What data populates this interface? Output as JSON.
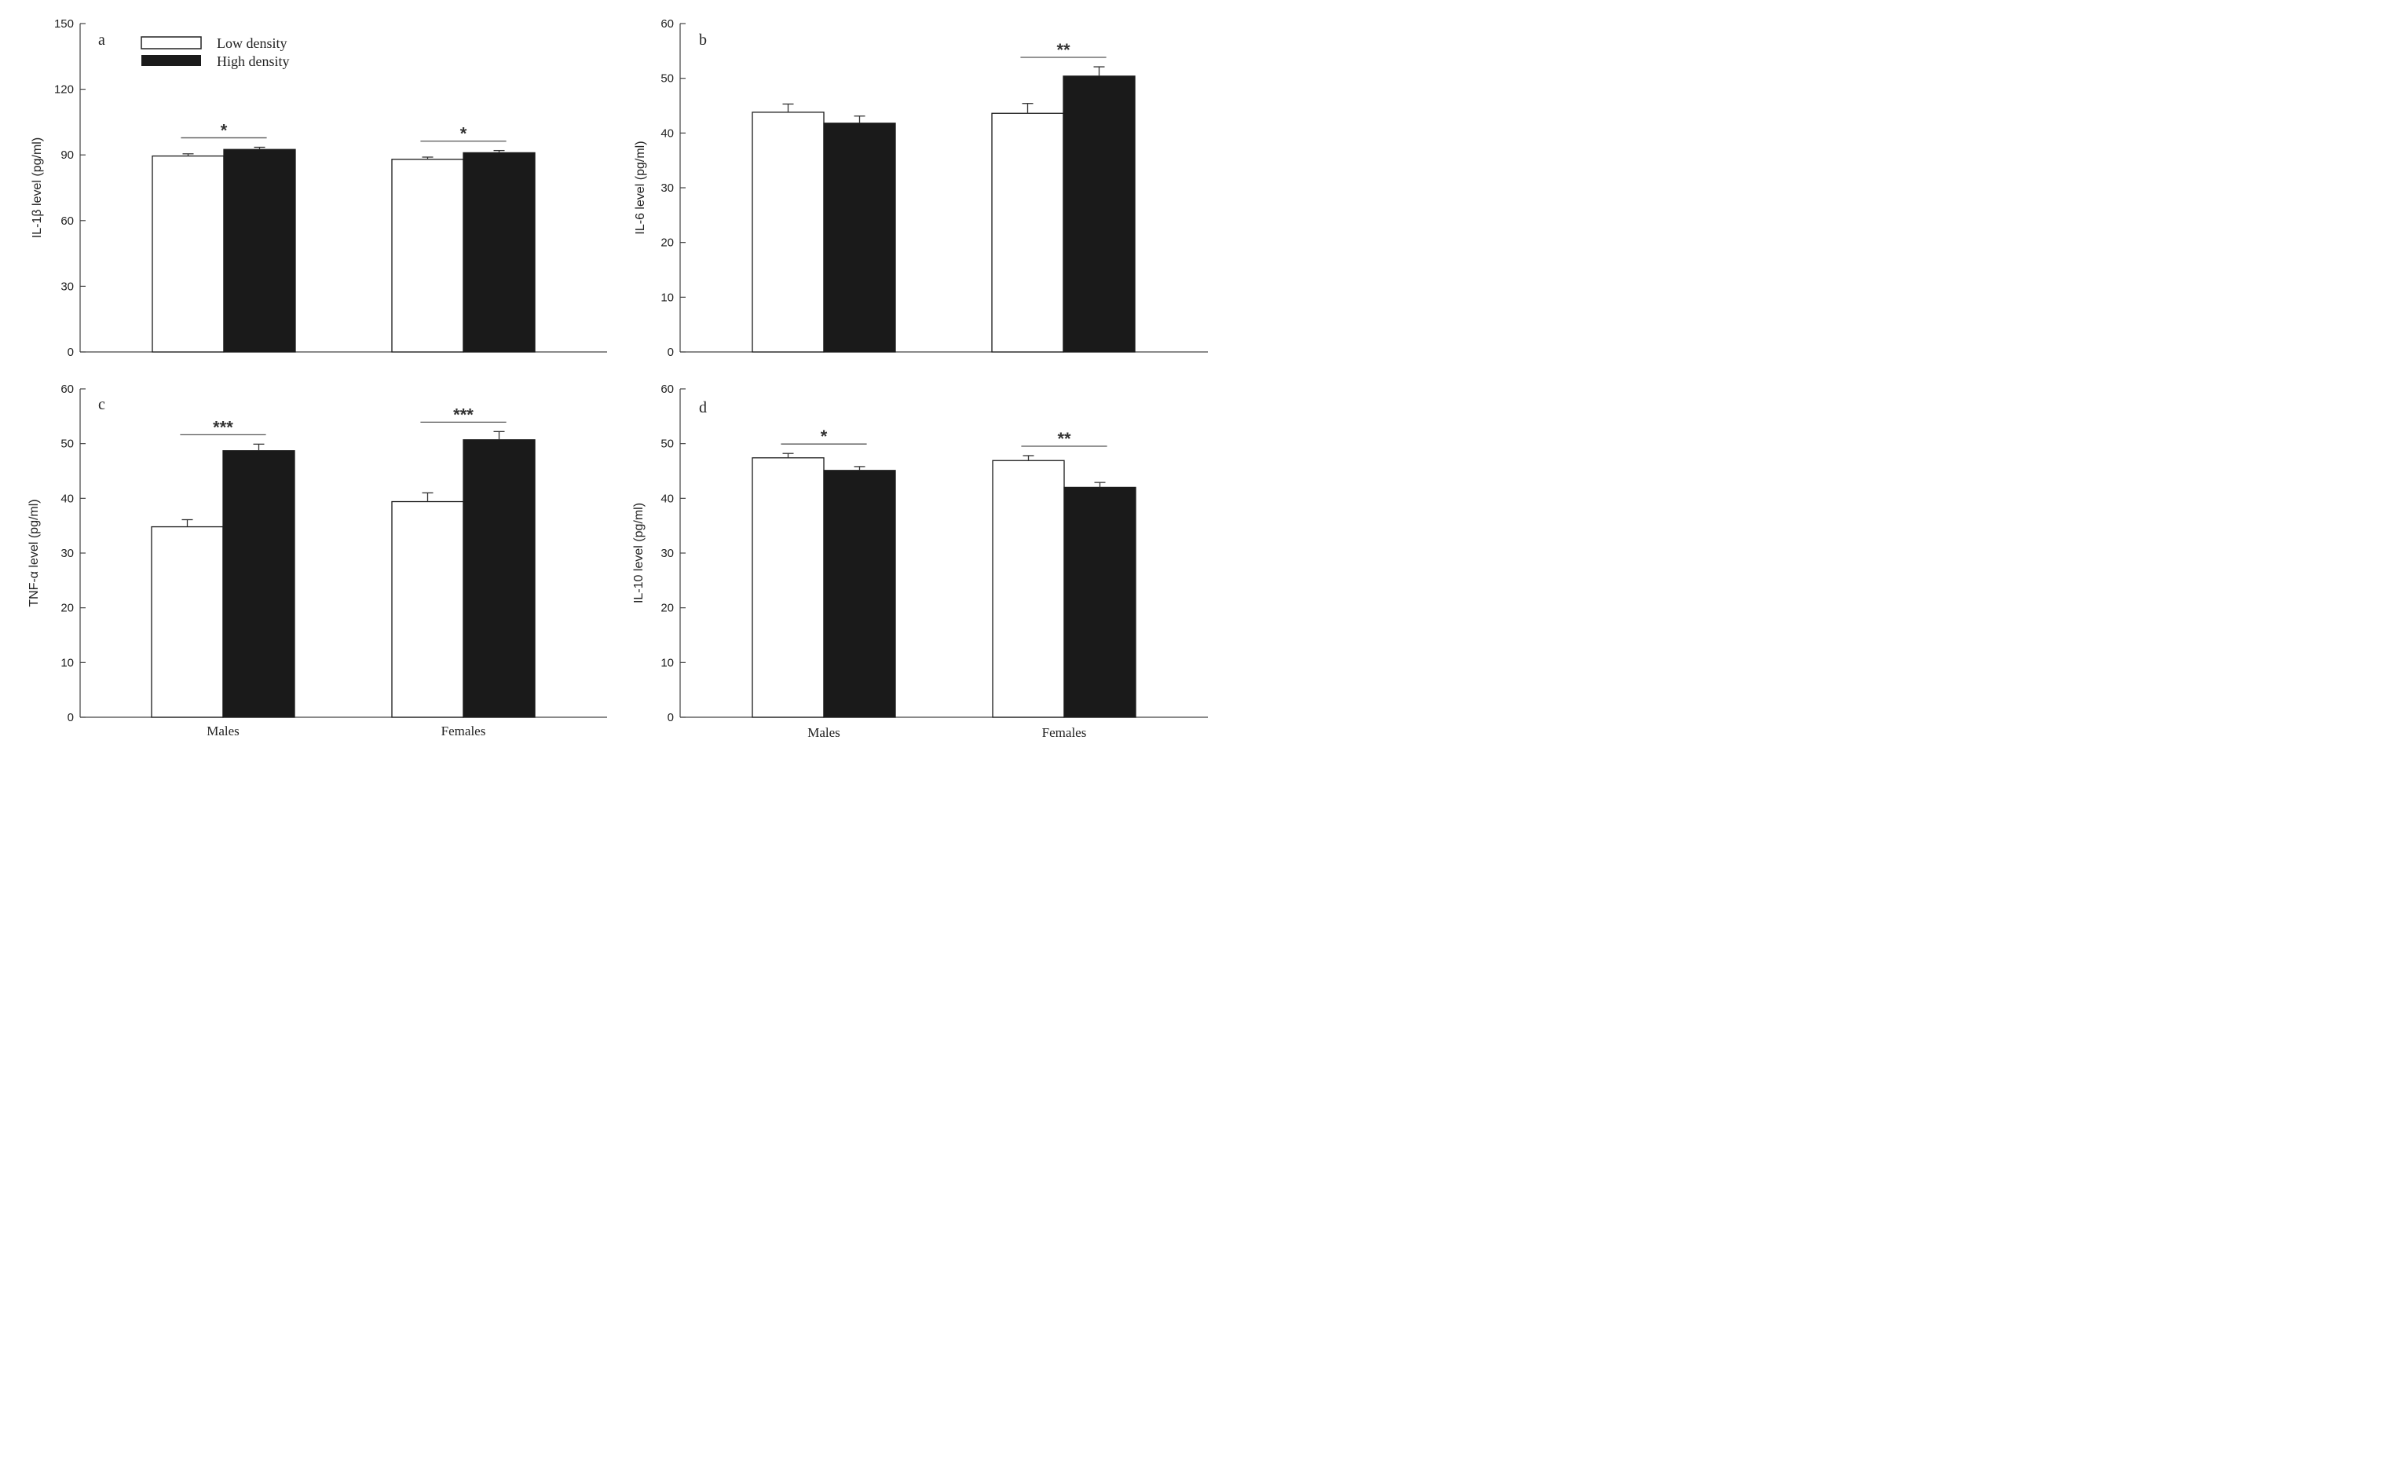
{
  "chart_data": [
    {
      "id": "a",
      "type": "bar",
      "panel_label": "a",
      "categories": [
        "Males",
        "Females"
      ],
      "series": [
        {
          "name": "Low density",
          "values": [
            89.5,
            88.0
          ],
          "errors": [
            1.0,
            1.0
          ]
        },
        {
          "name": "High density",
          "values": [
            92.5,
            91.0
          ],
          "errors": [
            1.0,
            1.0
          ]
        }
      ],
      "ylabel": "IL-1β level (pg/ml)",
      "xlabel": "",
      "ylim": [
        0,
        150
      ],
      "yticks": [
        0,
        30,
        60,
        90,
        120,
        150
      ],
      "show_category_labels": false,
      "significance": [
        "*",
        "*"
      ]
    },
    {
      "id": "b",
      "type": "bar",
      "panel_label": "b",
      "categories": [
        "Males",
        "Females"
      ],
      "series": [
        {
          "name": "Low density",
          "values": [
            43.8,
            43.6
          ],
          "errors": [
            1.5,
            1.8
          ]
        },
        {
          "name": "High density",
          "values": [
            41.8,
            50.4
          ],
          "errors": [
            1.3,
            1.7
          ]
        }
      ],
      "ylabel": "IL-6 level (pg/ml)",
      "xlabel": "",
      "ylim": [
        0,
        60
      ],
      "yticks": [
        0,
        10,
        20,
        30,
        40,
        50,
        60
      ],
      "show_category_labels": false,
      "significance": [
        "",
        "**"
      ]
    },
    {
      "id": "c",
      "type": "bar",
      "panel_label": "c",
      "categories": [
        "Males",
        "Females"
      ],
      "series": [
        {
          "name": "Low density",
          "values": [
            34.8,
            39.4
          ],
          "errors": [
            1.3,
            1.6
          ]
        },
        {
          "name": "High density",
          "values": [
            48.7,
            50.7
          ],
          "errors": [
            1.2,
            1.5
          ]
        }
      ],
      "ylabel": "TNF-α level (pg/ml)",
      "xlabel": "",
      "ylim": [
        0,
        60
      ],
      "yticks": [
        0,
        10,
        20,
        30,
        40,
        50,
        60
      ],
      "show_category_labels": true,
      "significance": [
        "***",
        "***"
      ]
    },
    {
      "id": "d",
      "type": "bar",
      "panel_label": "d",
      "categories": [
        "Males",
        "Females"
      ],
      "series": [
        {
          "name": "Low density",
          "values": [
            47.4,
            46.9
          ],
          "errors": [
            0.8,
            0.9
          ]
        },
        {
          "name": "High density",
          "values": [
            45.1,
            42.0
          ],
          "errors": [
            0.7,
            0.9
          ]
        }
      ],
      "ylabel": "IL-10 level (pg/ml)",
      "xlabel": "",
      "ylim": [
        0,
        60
      ],
      "yticks": [
        0,
        10,
        20,
        30,
        40,
        50,
        60
      ],
      "show_category_labels": true,
      "significance": [
        "*",
        "**"
      ]
    }
  ],
  "legend": {
    "items": [
      {
        "label": "Low density",
        "fill": "#ffffff"
      },
      {
        "label": "High density",
        "fill": "#1a1a1a"
      }
    ]
  },
  "colors": {
    "low_density": "#ffffff",
    "high_density": "#1a1a1a",
    "axis": "#444444"
  }
}
